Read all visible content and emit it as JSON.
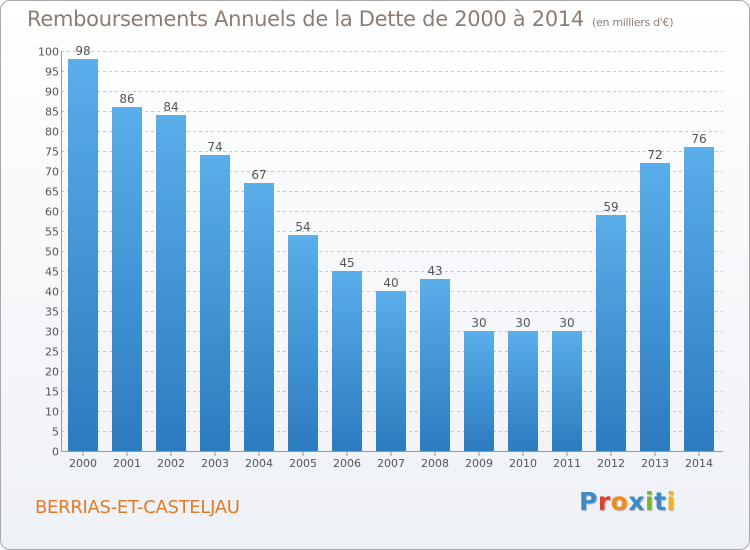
{
  "chart_data": {
    "type": "bar",
    "title": "Remboursements Annuels de la Dette de 2000 à 2014",
    "subtitle": "(en milliers d'€)",
    "categories": [
      "2000",
      "2001",
      "2002",
      "2003",
      "2004",
      "2005",
      "2006",
      "2007",
      "2008",
      "2009",
      "2010",
      "2011",
      "2012",
      "2013",
      "2014"
    ],
    "values": [
      98,
      86,
      84,
      74,
      67,
      54,
      45,
      40,
      43,
      30,
      30,
      30,
      59,
      72,
      76
    ],
    "yticks": [
      0,
      5,
      10,
      15,
      20,
      25,
      30,
      35,
      40,
      45,
      50,
      55,
      60,
      65,
      70,
      75,
      80,
      85,
      90,
      95,
      100
    ],
    "ylim": [
      0,
      100
    ],
    "xlabel": "",
    "ylabel": "",
    "grid": true,
    "colors": {
      "bar_top": "#5aaeea",
      "bar_bottom": "#2c7bbf",
      "text": "#555555",
      "grid": "#c8c8c8"
    }
  },
  "footer": {
    "commune": "BERRIAS-ET-CASTELJAU",
    "brand_letters": [
      {
        "ch": "P",
        "color": "#3b89c8"
      },
      {
        "ch": "r",
        "color": "#e2412f"
      },
      {
        "ch": "o",
        "color": "#f08a1e"
      },
      {
        "ch": "x",
        "color": "#3b89c8"
      },
      {
        "ch": "i",
        "color": "#7ab42d"
      },
      {
        "ch": "t",
        "color": "#3b89c8"
      },
      {
        "ch": "i",
        "color": "#f0b31e"
      }
    ]
  }
}
